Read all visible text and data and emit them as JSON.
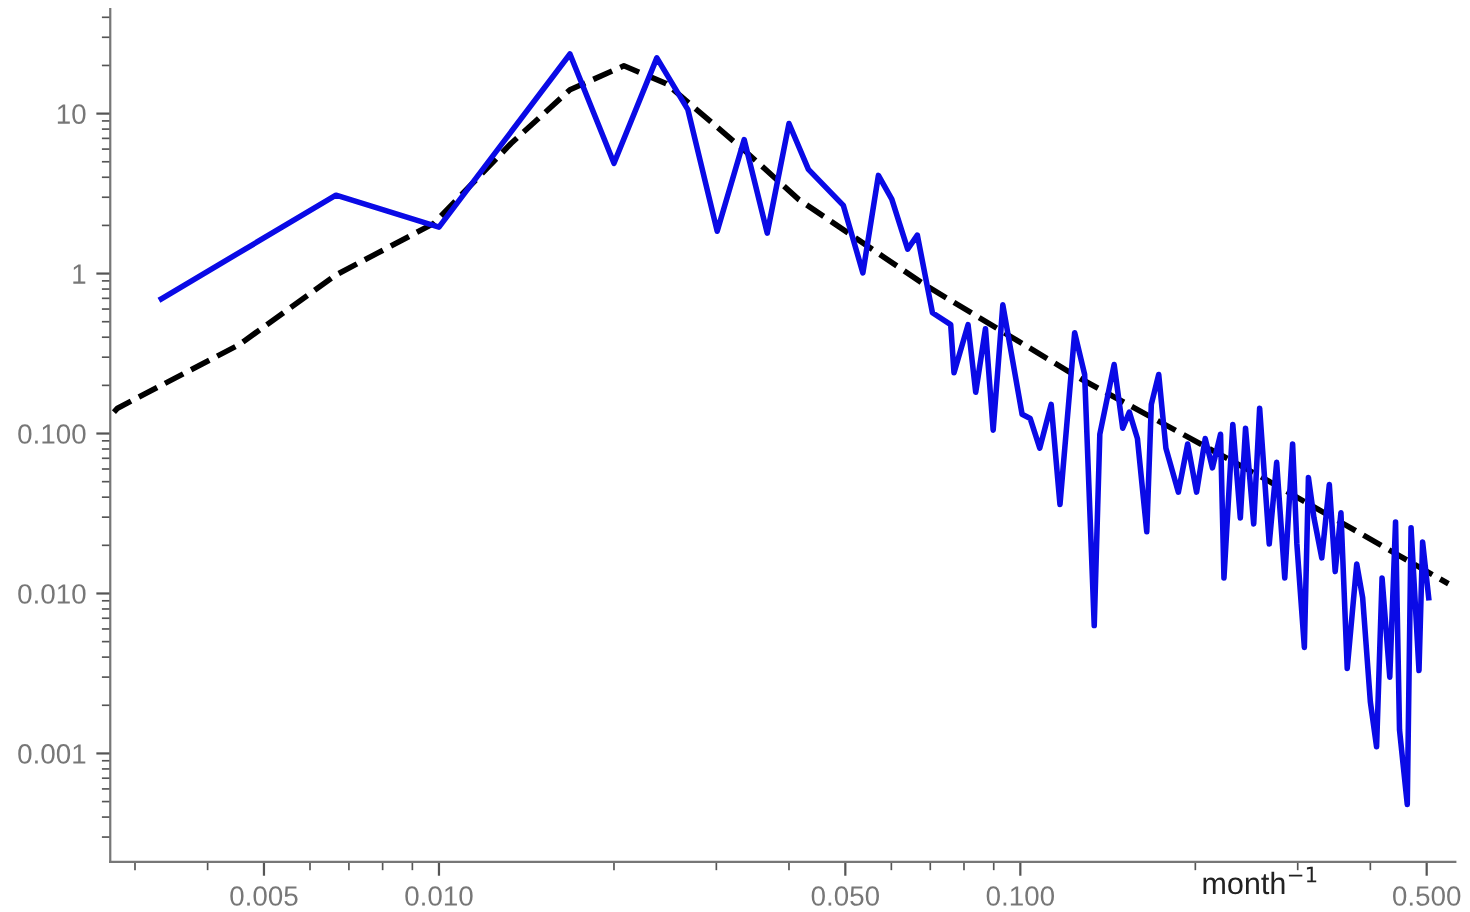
{
  "chart_data": {
    "type": "line",
    "xlabel": "month$^{−1}$",
    "log": "xy",
    "grid": false,
    "legend": false,
    "marker": "none",
    "xlim": [
      0.00272,
      0.56
    ],
    "ylim": [
      0.00021,
      45
    ],
    "xticks": [
      {
        "value": 0.005,
        "label": "0.005"
      },
      {
        "value": 0.01,
        "label": "0.010"
      },
      {
        "value": 0.05,
        "label": "0.050"
      },
      {
        "value": 0.1,
        "label": "0.100"
      },
      {
        "value": 0.5,
        "label": "0.500"
      }
    ],
    "yticks": [
      {
        "value": 0.001,
        "label": "0.001"
      },
      {
        "value": 0.01,
        "label": "0.010"
      },
      {
        "value": 0.1,
        "label": "0.100"
      },
      1,
      10
    ],
    "series": [
      {
        "color": "#0a0ae6",
        "line_style": "solid",
        "x": [
          0.00333,
          0.00665,
          0.01,
          0.0168,
          0.02,
          0.0237,
          0.0268,
          0.0301,
          0.0335,
          0.0367,
          0.04,
          0.0432,
          0.0496,
          0.0536,
          0.057,
          0.0601,
          0.064,
          0.0665,
          0.0706,
          0.0759,
          0.0769,
          0.0813,
          0.0838,
          0.0871,
          0.0898,
          0.0933,
          0.1007,
          0.104,
          0.108,
          0.113,
          0.117,
          0.124,
          0.129,
          0.134,
          0.137,
          0.145,
          0.15,
          0.154,
          0.159,
          0.165,
          0.168,
          0.173,
          0.178,
          0.187,
          0.194,
          0.201,
          0.208,
          0.214,
          0.221,
          0.224,
          0.232,
          0.239,
          0.244,
          0.252,
          0.258,
          0.268,
          0.276,
          0.285,
          0.294,
          0.299,
          0.308,
          0.313,
          0.32,
          0.33,
          0.34,
          0.348,
          0.356,
          0.365,
          0.379,
          0.388,
          0.4,
          0.41,
          0.419,
          0.432,
          0.442,
          0.449,
          0.463,
          0.47,
          0.485,
          0.492,
          0.504
        ],
        "values": [
          0.695,
          3.09,
          1.95,
          23.6,
          4.89,
          22.3,
          10.6,
          1.84,
          6.88,
          1.79,
          8.67,
          4.48,
          2.67,
          1.01,
          4.11,
          2.92,
          1.42,
          1.74,
          0.569,
          0.479,
          0.24,
          0.479,
          0.181,
          0.452,
          0.105,
          0.637,
          0.132,
          0.124,
          0.081,
          0.152,
          0.036,
          0.427,
          0.234,
          0.0063,
          0.099,
          0.27,
          0.108,
          0.136,
          0.093,
          0.0243,
          0.152,
          0.234,
          0.081,
          0.043,
          0.086,
          0.043,
          0.093,
          0.061,
          0.099,
          0.0125,
          0.114,
          0.0296,
          0.108,
          0.0272,
          0.144,
          0.0204,
          0.066,
          0.0125,
          0.086,
          0.0204,
          0.0046,
          0.053,
          0.0296,
          0.0167,
          0.048,
          0.0137,
          0.032,
          0.0034,
          0.0153,
          0.0094,
          0.0021,
          0.0011,
          0.0125,
          0.003,
          0.028,
          0.0014,
          0.00048,
          0.0257,
          0.0033,
          0.021,
          0.0094
        ]
      },
      {
        "color": "#000000",
        "line_style": "dashed",
        "x": [
          0.00276,
          0.0028,
          0.00453,
          0.00665,
          0.0098,
          0.0133,
          0.0168,
          0.0208,
          0.0246,
          0.0335,
          0.0416,
          0.0685,
          0.127,
          0.262,
          0.545
        ],
        "values": [
          0.136,
          0.144,
          0.359,
          0.98,
          2.06,
          6.5,
          14.1,
          19.9,
          15.4,
          5.9,
          2.9,
          0.85,
          0.22,
          0.0526,
          0.0115
        ]
      }
    ]
  }
}
